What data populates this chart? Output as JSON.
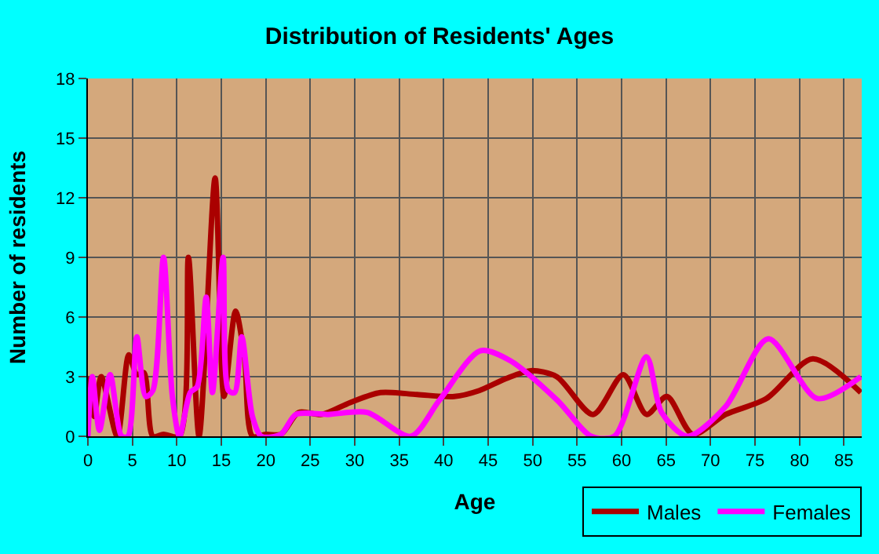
{
  "chart_data": {
    "type": "line",
    "title": "Distribution of Residents' Ages",
    "xlabel": "Age",
    "ylabel": "Number of residents",
    "xlim": [
      0,
      87
    ],
    "xticks": [
      0,
      5,
      10,
      15,
      20,
      25,
      30,
      35,
      40,
      45,
      50,
      55,
      60,
      65,
      70,
      75,
      80,
      85
    ],
    "ylim": [
      0,
      18
    ],
    "yticks": [
      0,
      3,
      6,
      9,
      12,
      15,
      18
    ],
    "grid": true,
    "legend": "bottom right",
    "series": [
      {
        "name": "Males",
        "color": "#aa0000",
        "x": [
          0,
          0.7,
          1.5,
          3.3,
          4.6,
          5.5,
          6.3,
          7.3,
          8.5,
          10.3,
          11.3,
          12.5,
          14.3,
          15.3,
          16.6,
          17.6,
          18.5,
          20,
          21.7,
          23.7,
          26.3,
          29.5,
          32.9,
          37,
          41.2,
          44,
          47,
          49.8,
          52.7,
          56.8,
          60.2,
          62.8,
          65.1,
          68,
          71.7,
          76.3,
          81.5,
          86.9
        ],
        "values": [
          3,
          1,
          3,
          0,
          4.1,
          3.1,
          3.2,
          0,
          0.1,
          0,
          9,
          0,
          13,
          2,
          6.3,
          4,
          0,
          0.1,
          0.1,
          1.2,
          1.1,
          1.7,
          2.2,
          2.1,
          2.0,
          2.3,
          2.9,
          3.3,
          3.0,
          1.1,
          3.1,
          1.1,
          2.0,
          0.1,
          1.1,
          1.9,
          3.9,
          2.2
        ]
      },
      {
        "name": "Females",
        "color": "#ff00ff",
        "x": [
          0,
          0.5,
          1.3,
          2.5,
          3.8,
          4.5,
          5.5,
          6.5,
          7.3,
          8.5,
          9.5,
          10.3,
          11.5,
          12.3,
          13.3,
          14,
          15.2,
          15.8,
          16.5,
          17.3,
          18.5,
          19.5,
          21.7,
          23.4,
          27,
          31.4,
          36.3,
          39.5,
          44.1,
          47.5,
          52.8,
          56.6,
          59.2,
          62.8,
          64.5,
          67.4,
          71.7,
          76.5,
          82,
          86.9
        ],
        "values": [
          0,
          3,
          0.3,
          3.1,
          0,
          0,
          5,
          2,
          2.3,
          9,
          2,
          0,
          2.2,
          2.5,
          7,
          2.2,
          9,
          2.3,
          2.2,
          5,
          1,
          0,
          0.1,
          1.1,
          1.1,
          1.2,
          0,
          1.8,
          4.3,
          3.8,
          1.8,
          0,
          0,
          4.0,
          1.2,
          0,
          1.5,
          4.9,
          1.9,
          3.0
        ]
      }
    ]
  }
}
